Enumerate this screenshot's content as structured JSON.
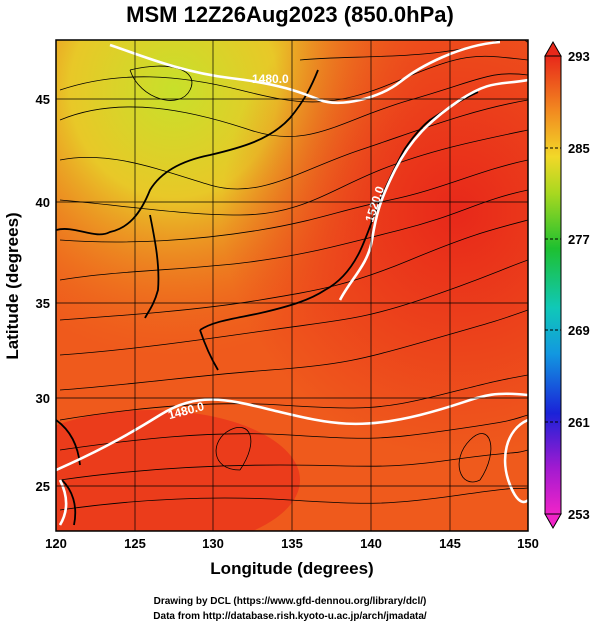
{
  "title": "MSM 12Z26Aug2023 (850.0hPa)",
  "xlabel": "Longitude (degrees)",
  "ylabel": "Latitude  (degrees)",
  "x_ticks": [
    "120",
    "125",
    "130",
    "135",
    "140",
    "145",
    "150"
  ],
  "y_ticks": [
    "25",
    "30",
    "35",
    "40",
    "45"
  ],
  "colorbar_ticks": [
    "293",
    "285",
    "277",
    "269",
    "261",
    "253"
  ],
  "contour_labels": [
    "1480.0",
    "1520.0",
    "1480.0"
  ],
  "footer_line1": "Drawing by DCL (https://www.gfd-dennou.org/library/dcl/)",
  "footer_line2": "Data from http://database.rish.kyoto-u.ac.jp/arch/jmadata/",
  "colors": {
    "warm": "#e8281a",
    "orange": "#f26a1c",
    "yellow": "#c8e02a",
    "green": "#27c42a",
    "cyan": "#11c4c4",
    "blue": "#1f2ad6",
    "magenta": "#e020e0"
  },
  "map_extent": {
    "lon": [
      120,
      150
    ],
    "lat": [
      22.5,
      48
    ]
  },
  "colorbar_range": [
    253,
    293
  ]
}
